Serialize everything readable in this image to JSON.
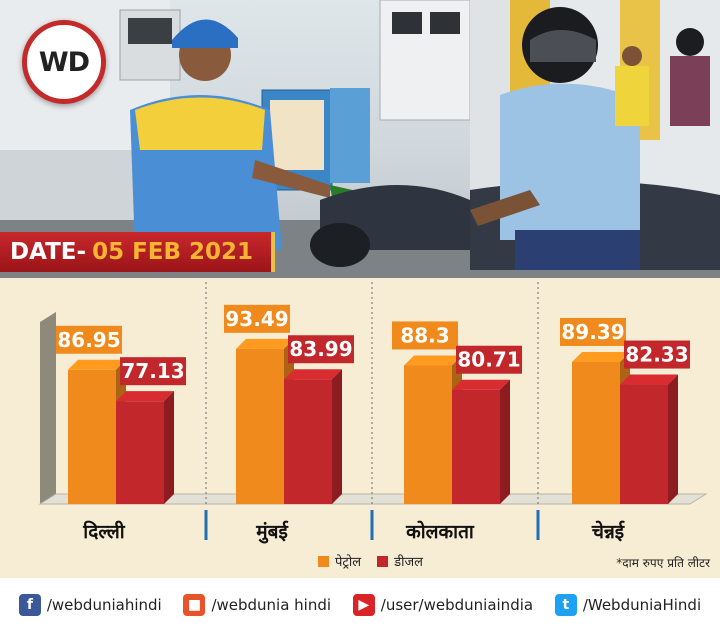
{
  "brand": {
    "logo_text": "WD"
  },
  "date_banner": {
    "label": "DATE-",
    "value": "05 FEB 2021"
  },
  "chart_data": {
    "type": "bar",
    "categories": [
      "दिल्ली",
      "मुंबई",
      "कोलकाता",
      "चेन्नई"
    ],
    "series": [
      {
        "name": "पेट्रोल",
        "values": [
          86.95,
          93.49,
          88.3,
          89.39
        ],
        "color": "#f08a1c"
      },
      {
        "name": "डीजल",
        "values": [
          77.13,
          83.99,
          80.71,
          82.33
        ],
        "color": "#c2272b"
      }
    ],
    "value_labels": {
      "petrol": [
        "86.95",
        "93.49",
        "88.3",
        "89.39"
      ],
      "diesel": [
        "77.13",
        "83.99",
        "80.71",
        "82.33"
      ]
    },
    "title": "",
    "xlabel": "",
    "ylabel": "",
    "unit_note": "*दाम रुपए प्रति लीटर",
    "legend_position": "bottom",
    "grid": false
  },
  "footer": {
    "items": [
      {
        "icon": "facebook-icon",
        "text": "/webduniahindi"
      },
      {
        "icon": "webdunia-icon",
        "text": "/webdunia hindi"
      },
      {
        "icon": "youtube-icon",
        "text": "/user/webduniaindia"
      },
      {
        "icon": "twitter-icon",
        "text": "/WebduniaHindi"
      }
    ]
  }
}
